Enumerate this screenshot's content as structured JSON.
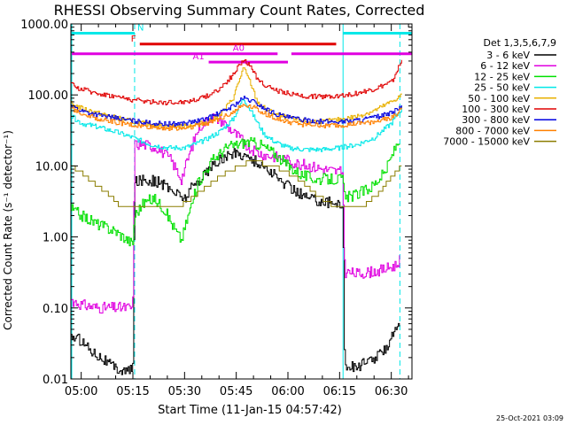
{
  "chart_data": {
    "type": "line",
    "title": "RHESSI Observing Summary Count Rates, Corrected",
    "xlabel": "Start Time (11-Jan-15 04:57:42)",
    "ylabel": "Corrected Count Rate (s⁻¹ detector⁻¹)",
    "y_scale": "log",
    "ylim": [
      0.01,
      1000
    ],
    "xlim": [
      -3,
      96
    ],
    "x_unit": "minutes after 05:00 UT",
    "x_ticks": [
      {
        "x": 0,
        "label": "05:00"
      },
      {
        "x": 15,
        "label": "05:15"
      },
      {
        "x": 30,
        "label": "05:30"
      },
      {
        "x": 45,
        "label": "05:45"
      },
      {
        "x": 60,
        "label": "06:00"
      },
      {
        "x": 75,
        "label": "06:15"
      },
      {
        "x": 90,
        "label": "06:30"
      }
    ],
    "y_ticks": [
      {
        "y": 1000,
        "label": "1000.00"
      },
      {
        "y": 100,
        "label": "100.00"
      },
      {
        "y": 10,
        "label": "10.00"
      },
      {
        "y": 1,
        "label": "1.00"
      },
      {
        "y": 0.1,
        "label": "0.10"
      },
      {
        "y": 0.01,
        "label": "0.01"
      }
    ],
    "legend_title": "Det 1,3,5,6,7,9",
    "legend_position": "right",
    "grid": false,
    "night_boundaries": [
      15.5,
      76
    ],
    "flag_bars": [
      {
        "label": "N",
        "color": "#00e8e8",
        "y": 740,
        "segments": [
          [
            -3,
            15.5
          ],
          [
            76,
            96
          ]
        ]
      },
      {
        "label": "F",
        "color": "#e00000",
        "y": 520,
        "segments": [
          [
            17,
            74
          ]
        ]
      },
      {
        "label": "A0",
        "color": "#e000e0",
        "y": 380,
        "segments": [
          [
            -3,
            57
          ],
          [
            61,
            96
          ]
        ]
      },
      {
        "label": "A1",
        "color": "#e000e0",
        "y": 290,
        "segments": [
          [
            37,
            60
          ]
        ]
      }
    ],
    "series": [
      {
        "name": "3 - 6 keV",
        "color": "#000000",
        "x": [
          -3,
          0,
          3,
          6,
          9,
          12,
          14.9,
          15.4,
          18,
          22,
          25,
          28,
          30,
          32,
          36,
          40,
          44,
          47,
          50,
          54,
          58,
          62,
          66,
          70,
          73,
          75.9,
          76.4,
          80,
          84,
          88,
          91.5,
          92.5
        ],
        "y": [
          0.04,
          0.035,
          0.025,
          0.02,
          0.015,
          0.013,
          0.013,
          6,
          6.5,
          6,
          5,
          4,
          3.5,
          5,
          8,
          12,
          15,
          14.5,
          12,
          9,
          6,
          4.5,
          3.5,
          3.2,
          3,
          3,
          0.015,
          0.015,
          0.018,
          0.025,
          0.06,
          0.05
        ]
      },
      {
        "name": "6 - 12 keV",
        "color": "#e000e0",
        "x": [
          -3,
          0,
          5,
          10,
          14.9,
          15.4,
          18,
          22,
          26,
          29,
          31,
          34,
          38,
          41,
          44,
          47,
          50,
          54,
          58,
          62,
          66,
          70,
          73,
          75.9,
          76.4,
          80,
          84,
          88,
          91.5,
          92.5
        ],
        "y": [
          0.13,
          0.11,
          0.1,
          0.1,
          0.1,
          20,
          20,
          18,
          12,
          6.5,
          13,
          35,
          50,
          42,
          30,
          22,
          16,
          14,
          13,
          11,
          10,
          9,
          8.5,
          8,
          0.32,
          0.3,
          0.32,
          0.35,
          0.4,
          0.5
        ]
      },
      {
        "name": "12 - 25 keV",
        "color": "#00e000",
        "x": [
          -3,
          0,
          5,
          10,
          14.9,
          15.4,
          18,
          21,
          24,
          27,
          29,
          31,
          34,
          38,
          42,
          45,
          48,
          52,
          56,
          60,
          64,
          68,
          72,
          75.9,
          76.4,
          80,
          84,
          88,
          91.5,
          92.5
        ],
        "y": [
          2.5,
          2,
          1.5,
          1.2,
          0.8,
          2,
          3,
          3.5,
          2.5,
          1.3,
          0.9,
          2,
          6,
          12,
          18,
          20,
          22,
          20,
          15,
          10,
          7.5,
          6.5,
          6.5,
          6.5,
          3.5,
          4,
          5,
          8,
          20,
          24
        ]
      },
      {
        "name": "25 - 50 keV",
        "color": "#00e8e8",
        "x": [
          -3,
          0,
          5,
          10,
          15,
          20,
          25,
          30,
          35,
          40,
          44,
          47,
          50,
          53,
          56,
          60,
          65,
          70,
          75,
          80,
          85,
          90,
          93
        ],
        "y": [
          50,
          40,
          35,
          30,
          25,
          20,
          18,
          18,
          22,
          30,
          45,
          90,
          50,
          28,
          22,
          18,
          17,
          17,
          18,
          20,
          25,
          40,
          65
        ]
      },
      {
        "name": "50 - 100 keV",
        "color": "#e8b000",
        "x": [
          -3,
          0,
          5,
          10,
          15,
          20,
          25,
          30,
          35,
          40,
          44,
          47,
          49,
          51,
          54,
          58,
          62,
          66,
          70,
          75,
          80,
          85,
          90,
          93
        ],
        "y": [
          75,
          65,
          55,
          48,
          42,
          38,
          36,
          36,
          40,
          50,
          90,
          240,
          150,
          80,
          60,
          50,
          45,
          42,
          42,
          45,
          50,
          60,
          80,
          100
        ]
      },
      {
        "name": "100 - 300 keV",
        "color": "#e00000",
        "x": [
          -3,
          0,
          5,
          10,
          15,
          20,
          25,
          30,
          35,
          40,
          44,
          47,
          49,
          51,
          54,
          58,
          62,
          66,
          70,
          75,
          80,
          85,
          90,
          93
        ],
        "y": [
          140,
          120,
          105,
          95,
          85,
          80,
          78,
          80,
          90,
          120,
          190,
          320,
          250,
          170,
          130,
          110,
          100,
          95,
          95,
          98,
          105,
          120,
          150,
          300
        ]
      },
      {
        "name": "300 - 800 keV",
        "color": "#0000e0",
        "x": [
          -3,
          0,
          5,
          10,
          15,
          20,
          25,
          30,
          35,
          40,
          44,
          47,
          50,
          53,
          56,
          60,
          65,
          70,
          75,
          80,
          85,
          90,
          93
        ],
        "y": [
          70,
          60,
          52,
          47,
          43,
          40,
          39,
          40,
          44,
          55,
          70,
          90,
          80,
          65,
          55,
          48,
          44,
          42,
          42,
          44,
          48,
          55,
          70
        ]
      },
      {
        "name": "800 - 7000 keV",
        "color": "#ff8000",
        "x": [
          -3,
          0,
          5,
          10,
          15,
          20,
          25,
          30,
          35,
          40,
          44,
          47,
          50,
          53,
          56,
          60,
          65,
          70,
          75,
          80,
          85,
          90,
          93
        ],
        "y": [
          65,
          55,
          46,
          41,
          37,
          35,
          34,
          34,
          38,
          46,
          58,
          72,
          68,
          55,
          47,
          41,
          38,
          37,
          37,
          39,
          42,
          48,
          62
        ]
      },
      {
        "name": "7000 - 15000 keV",
        "color": "#8b7d00",
        "x": [
          -3,
          0,
          4,
          8,
          11,
          14,
          17,
          22,
          26,
          29,
          32,
          36,
          40,
          44,
          48,
          52,
          56,
          60,
          64,
          68,
          72,
          75,
          78,
          82,
          86,
          90,
          93
        ],
        "y": [
          10,
          8,
          5.5,
          4,
          2.8,
          2.5,
          2.5,
          2.5,
          2.5,
          2.8,
          3.5,
          5,
          7,
          9,
          11,
          11,
          10,
          8,
          6,
          4,
          3,
          2.5,
          2.5,
          2.8,
          4,
          7,
          10
        ]
      }
    ]
  },
  "footer": {
    "timestamp": "25-Oct-2021 03:09"
  }
}
